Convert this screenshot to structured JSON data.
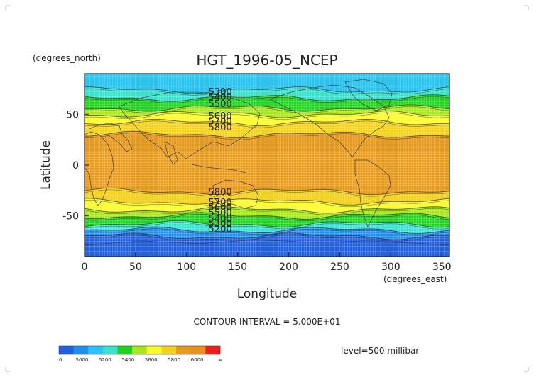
{
  "chart_data": {
    "type": "heatmap",
    "title": "HGT_1996-05_NCEP",
    "xlabel": "Longitude",
    "ylabel": "Latitude",
    "x_units": "(degrees_east)",
    "y_units": "(degrees_north)",
    "xlim": [
      0,
      357.5
    ],
    "ylim": [
      -90,
      90
    ],
    "x_ticks": [
      0,
      50,
      100,
      150,
      200,
      250,
      300,
      350
    ],
    "y_ticks": [
      50,
      0,
      -50
    ],
    "grid": true,
    "contour_interval_text": "CONTOUR INTERVAL = 5.000E+01",
    "level_text": "level=500 millibar",
    "color_levels": [
      {
        "label": "0",
        "color": "#1f5fe0"
      },
      {
        "label": "5000",
        "color": "#1f8ef0"
      },
      {
        "label": "5200",
        "color": "#25c6f5"
      },
      {
        "label": "5400",
        "color": "#35e3d0"
      },
      {
        "label": "5600",
        "color": "#1ed21e"
      },
      {
        "label": "5800",
        "color": "#a8e818"
      },
      {
        "label": "6000",
        "color": "#fbfb2a"
      },
      {
        "label": "∞",
        "color": "#f5d21a"
      }
    ],
    "extra_colors": [
      "#e89a1a",
      "#e8921a",
      "#f01d1d"
    ],
    "bands_north_to_south": [
      {
        "from_lat": 90,
        "to_lat": 74,
        "value": 5300,
        "color": "#25c6f5"
      },
      {
        "from_lat": 74,
        "to_lat": 66,
        "value": 5400,
        "color": "#35e3d0"
      },
      {
        "from_lat": 66,
        "to_lat": 56,
        "value": 5500,
        "color": "#1ed21e"
      },
      {
        "from_lat": 56,
        "to_lat": 50,
        "value": 5600,
        "color": "#a8e818"
      },
      {
        "from_lat": 50,
        "to_lat": 42,
        "value": 5700,
        "color": "#fbfb2a"
      },
      {
        "from_lat": 42,
        "to_lat": 30,
        "value": 5800,
        "color": "#f5d21a"
      },
      {
        "from_lat": 30,
        "to_lat": -26,
        "value": 5850,
        "color": "#e89a1a"
      },
      {
        "from_lat": -26,
        "to_lat": -36,
        "value": 5800,
        "color": "#f5d21a"
      },
      {
        "from_lat": -36,
        "to_lat": -44,
        "value": 5700,
        "color": "#fbfb2a"
      },
      {
        "from_lat": -44,
        "to_lat": -50,
        "value": 5600,
        "color": "#a8e818"
      },
      {
        "from_lat": -50,
        "to_lat": -58,
        "value": 5500,
        "color": "#1ed21e"
      },
      {
        "from_lat": -58,
        "to_lat": -64,
        "value": 5400,
        "color": "#35e3d0"
      },
      {
        "from_lat": -64,
        "to_lat": -70,
        "value": 5200,
        "color": "#1f8ef0"
      },
      {
        "from_lat": -70,
        "to_lat": -90,
        "value": 5000,
        "color": "#1f5fe0"
      }
    ],
    "contour_labels": [
      {
        "text": "5300",
        "lon": 120,
        "lat": 72
      },
      {
        "text": "5400",
        "lon": 120,
        "lat": 67
      },
      {
        "text": "5500",
        "lon": 120,
        "lat": 60
      },
      {
        "text": "5600",
        "lon": 120,
        "lat": 48
      },
      {
        "text": "5700",
        "lon": 120,
        "lat": 43
      },
      {
        "text": "5800",
        "lon": 120,
        "lat": 37
      },
      {
        "text": "5800",
        "lon": 120,
        "lat": -27
      },
      {
        "text": "5700",
        "lon": 120,
        "lat": -37
      },
      {
        "text": "5600",
        "lon": 120,
        "lat": -42
      },
      {
        "text": "5500",
        "lon": 120,
        "lat": -47
      },
      {
        "text": "5400",
        "lon": 120,
        "lat": -53
      },
      {
        "text": "5300",
        "lon": 120,
        "lat": -58
      },
      {
        "text": "5200",
        "lon": 120,
        "lat": -63
      }
    ]
  }
}
